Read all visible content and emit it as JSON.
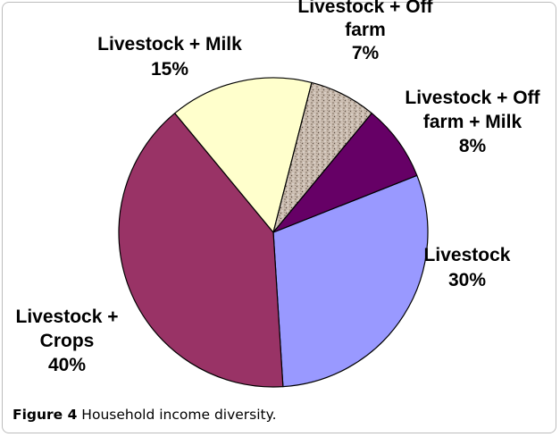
{
  "caption": {
    "figure_label": "Figure 4",
    "text": " Household income diversity."
  },
  "colors": {
    "livestock": "#9999FF",
    "livestock_crops": "#993366",
    "livestock_milk": "#FFFFCC",
    "livestock_offfarm": "#C9BBAE",
    "livestock_offfarm_milk": "#660066",
    "outline": "#000000"
  },
  "chart_data": {
    "type": "pie",
    "title": "",
    "slices": [
      {
        "name": "Livestock",
        "value": 30,
        "label_lines": [
          "Livestock",
          "30%"
        ],
        "color": "#9999FF"
      },
      {
        "name": "Livestock + Crops",
        "value": 40,
        "label_lines": [
          "Livestock +",
          "Crops",
          "40%"
        ],
        "color": "#993366"
      },
      {
        "name": "Livestock + Milk",
        "value": 15,
        "label_lines": [
          "Livestock + Milk",
          "15%"
        ],
        "color": "#FFFFCC"
      },
      {
        "name": "Livestock + Off farm",
        "value": 7,
        "label_lines": [
          "Livestock + Off",
          "farm",
          "7%"
        ],
        "color": "#C9BBAE",
        "pattern": "speckled"
      },
      {
        "name": "Livestock + Off farm + Milk",
        "value": 8,
        "label_lines": [
          "Livestock + Off",
          "farm + Milk",
          "8%"
        ],
        "color": "#660066"
      }
    ],
    "start_direction": "east-north-east",
    "order": "clockwise",
    "legend": "none",
    "labels": "outside"
  }
}
